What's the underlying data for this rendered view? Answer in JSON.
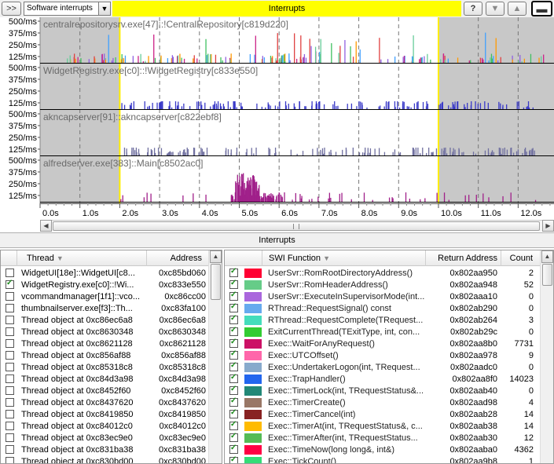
{
  "toolbar": {
    "expand_label": ">>",
    "dropdown_value": "Software interrupts",
    "title": "Interrupts",
    "help_label": "?",
    "down_label": "▼",
    "up_label": "▲",
    "layout_label": "▬"
  },
  "chart": {
    "tracks": [
      {
        "label": "centralrepositorysrv.exe[47]::!CentralRepository[c819d220]",
        "ticks": [
          "500/ms",
          "375/ms",
          "250/ms",
          "125/ms"
        ],
        "color": "#d06060"
      },
      {
        "label": "WidgetRegistry.exe[c0]::!WidgetRegistry[c833e550]",
        "ticks": [
          "500/ms",
          "375/ms",
          "250/ms",
          "125/ms"
        ],
        "color": "#3a3ac8"
      },
      {
        "label": "akncapserver[91]::akncapserver[c822ebf8]",
        "ticks": [
          "500/ms",
          "375/ms",
          "250/ms",
          "125/ms"
        ],
        "color": "#7070a0"
      },
      {
        "label": "alfredserver.exe[383]::Main[c8502ac0]",
        "ticks": [
          "500/ms",
          "375/ms",
          "250/ms",
          "125/ms"
        ],
        "color": "#a0208a"
      }
    ],
    "x_ticks": [
      "0.0s",
      "1.0s",
      "2.0s",
      "3.0s",
      "4.0s",
      "5.0s",
      "6.0s",
      "7.0s",
      "8.0s",
      "9.0s",
      "10.0s",
      "11.0s",
      "12.0s"
    ],
    "selection_start": "2.0s",
    "selection_end": "10.0s"
  },
  "separator": {
    "label": "Interrupts"
  },
  "thread_table": {
    "headers": [
      "Thread",
      "Address"
    ],
    "rows": [
      {
        "checked": false,
        "thread": "WidgetUI[18e]::WidgetUI[c8...",
        "address": "0xc85bd060"
      },
      {
        "checked": true,
        "thread": "WidgetRegistry.exe[c0]::!Wi...",
        "address": "0xc833e550"
      },
      {
        "checked": false,
        "thread": "vcommandmanager[1f1]::vco...",
        "address": "0xc86cc00"
      },
      {
        "checked": false,
        "thread": "thumbnailserver.exe[f3]::Th...",
        "address": "0xc83fa100"
      },
      {
        "checked": false,
        "thread": "Thread object at 0xc86ec6a8",
        "address": "0xc86ec6a8"
      },
      {
        "checked": false,
        "thread": "Thread object at 0xc8630348",
        "address": "0xc8630348"
      },
      {
        "checked": false,
        "thread": "Thread object at 0xc8621128",
        "address": "0xc8621128"
      },
      {
        "checked": false,
        "thread": "Thread object at 0xc856af88",
        "address": "0xc856af88"
      },
      {
        "checked": false,
        "thread": "Thread object at 0xc85318c8",
        "address": "0xc85318c8"
      },
      {
        "checked": false,
        "thread": "Thread object at 0xc84d3a98",
        "address": "0xc84d3a98"
      },
      {
        "checked": false,
        "thread": "Thread object at 0xc8452f60",
        "address": "0xc8452f60"
      },
      {
        "checked": false,
        "thread": "Thread object at 0xc8437620",
        "address": "0xc8437620"
      },
      {
        "checked": false,
        "thread": "Thread object at 0xc8419850",
        "address": "0xc8419850"
      },
      {
        "checked": false,
        "thread": "Thread object at 0xc84012c0",
        "address": "0xc84012c0"
      },
      {
        "checked": false,
        "thread": "Thread object at 0xc83ec9e0",
        "address": "0xc83ec9e0"
      },
      {
        "checked": false,
        "thread": "Thread object at 0xc831ba38",
        "address": "0xc831ba38"
      },
      {
        "checked": false,
        "thread": "Thread object at 0xc830bd00",
        "address": "0xc830bd00"
      }
    ]
  },
  "swi_table": {
    "headers": [
      "SWI Function",
      "Return Address",
      "Count"
    ],
    "rows": [
      {
        "checked": true,
        "color": "#ff0033",
        "function": "UserSvr::RomRootDirectoryAddress()",
        "ret": "0x802aa950",
        "count": "2"
      },
      {
        "checked": true,
        "color": "#66cc88",
        "function": "UserSvr::RomHeaderAddress()",
        "ret": "0x802aa948",
        "count": "52"
      },
      {
        "checked": true,
        "color": "#aa66dd",
        "function": "UserSvr::ExecuteInSupervisorMode(int...",
        "ret": "0x802aaa10",
        "count": "0"
      },
      {
        "checked": true,
        "color": "#66aaee",
        "function": "RThread::RequestSignal() const",
        "ret": "0x802ab290",
        "count": "0"
      },
      {
        "checked": true,
        "color": "#44ddbb",
        "function": "RThread::RequestComplete(TRequest...",
        "ret": "0x802ab264",
        "count": "3"
      },
      {
        "checked": true,
        "color": "#33cc33",
        "function": "ExitCurrentThread(TExitType, int, con...",
        "ret": "0x802ab29c",
        "count": "0"
      },
      {
        "checked": true,
        "color": "#cc1166",
        "function": "Exec::WaitForAnyRequest()",
        "ret": "0x802aa8b0",
        "count": "7731"
      },
      {
        "checked": true,
        "color": "#ff66aa",
        "function": "Exec::UTCOffset()",
        "ret": "0x802aa978",
        "count": "9"
      },
      {
        "checked": true,
        "color": "#88aacc",
        "function": "Exec::UndertakerLogon(int, TRequest...",
        "ret": "0x802aadc0",
        "count": "0"
      },
      {
        "checked": true,
        "color": "#2266ee",
        "function": "Exec::TrapHandler()",
        "ret": "0x802aa8f0",
        "count": "14023"
      },
      {
        "checked": true,
        "color": "#228877",
        "function": "Exec::TimerLock(int, TRequestStatus&...",
        "ret": "0x802aab40",
        "count": "0"
      },
      {
        "checked": true,
        "color": "#997766",
        "function": "Exec::TimerCreate()",
        "ret": "0x802aad98",
        "count": "4"
      },
      {
        "checked": true,
        "color": "#882222",
        "function": "Exec::TimerCancel(int)",
        "ret": "0x802aab28",
        "count": "14"
      },
      {
        "checked": true,
        "color": "#ffbb00",
        "function": "Exec::TimerAt(int, TRequestStatus&, c...",
        "ret": "0x802aab38",
        "count": "14"
      },
      {
        "checked": true,
        "color": "#55bb55",
        "function": "Exec::TimerAfter(int, TRequestStatus...",
        "ret": "0x802aab30",
        "count": "12"
      },
      {
        "checked": true,
        "color": "#ff0044",
        "function": "Exec::TimeNow(long long&, int&)",
        "ret": "0x802aaba0",
        "count": "4362"
      },
      {
        "checked": true,
        "color": "#33dd77",
        "function": "Exec::TickCount()",
        "ret": "0x802aa9b8",
        "count": "1"
      }
    ]
  }
}
